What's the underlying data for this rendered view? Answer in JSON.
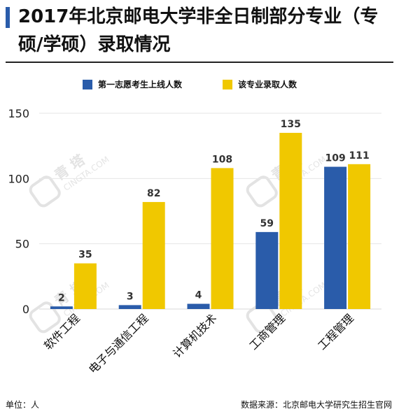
{
  "title": "2017年北京邮电大学非全日制部分专业（专硕/学硕）录取情况",
  "legend": {
    "series1": "第一志愿考生上线人数",
    "series2": "该专业录取人数"
  },
  "colors": {
    "series1": "#2a5caa",
    "series2": "#f0c800",
    "accent": "#2a5caa"
  },
  "watermark": {
    "main": "青 塔",
    "sub": "CINGTA.COM"
  },
  "footer": {
    "unit": "单位：人",
    "source": "数据来源：北京邮电大学研究生招生官网"
  },
  "chart_data": {
    "type": "bar",
    "title": "2017年北京邮电大学非全日制部分专业（专硕/学硕）录取情况",
    "categories": [
      "软件工程",
      "电子与通信工程",
      "计算机技术",
      "工商管理",
      "工程管理"
    ],
    "series": [
      {
        "name": "第一志愿考生上线人数",
        "values": [
          2,
          3,
          4,
          59,
          109
        ]
      },
      {
        "name": "该专业录取人数",
        "values": [
          35,
          82,
          108,
          135,
          111
        ]
      }
    ],
    "yticks": [
      0,
      50,
      100,
      150
    ],
    "ylim": [
      0,
      150
    ],
    "grid": true,
    "legend_position": "top"
  }
}
